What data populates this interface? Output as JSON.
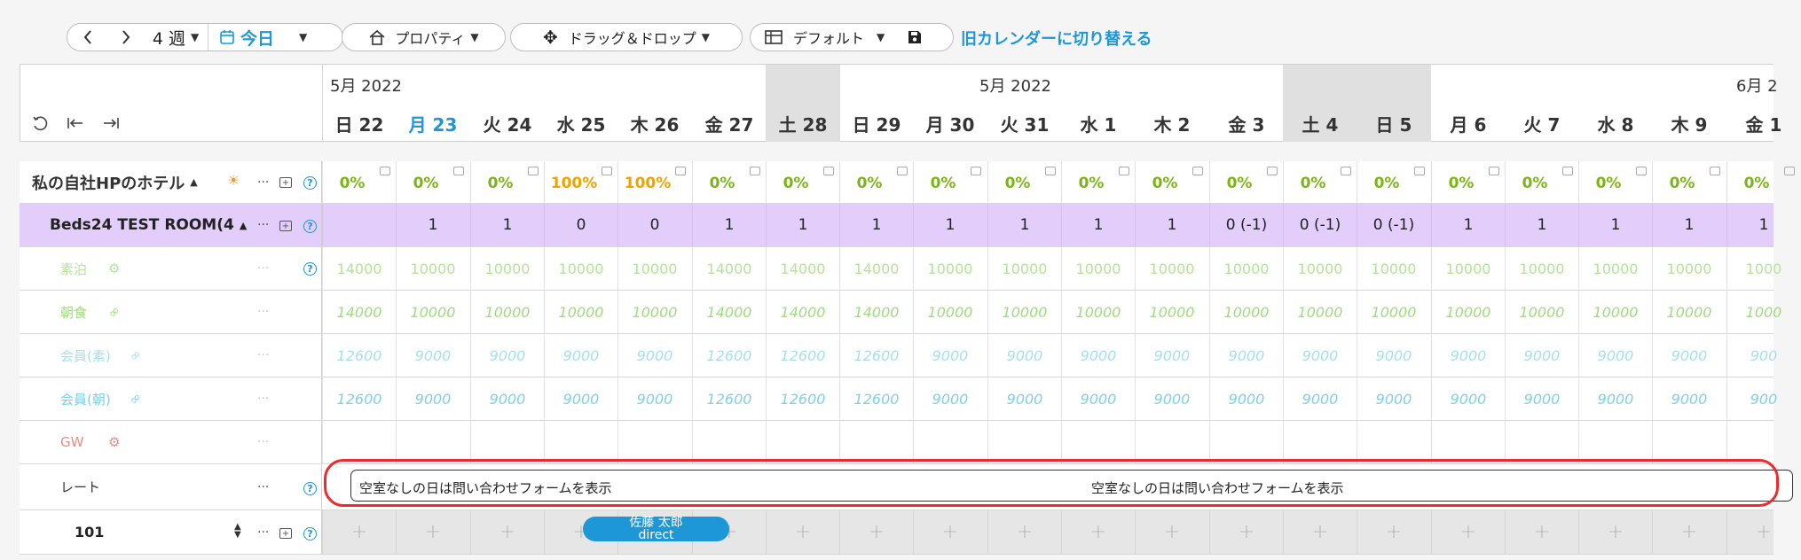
{
  "toolbar": {
    "prev_icon": "chevron-left-icon",
    "next_icon": "chevron-right-icon",
    "weeks_label": "4 週",
    "today_label": "今日",
    "property_label": "プロパティ",
    "dragdrop_label": "ドラッグ＆ドロップ",
    "layout_label": "デフォルト",
    "switch_link": "旧カレンダーに切り替える"
  },
  "header": {
    "months": [
      {
        "label": "5月 2022",
        "col": 0
      },
      {
        "label": "5月 2022",
        "col": 9
      },
      {
        "label": "6月 2",
        "col": 19
      }
    ],
    "days": [
      {
        "label": "日 22",
        "weekend": false,
        "today": false
      },
      {
        "label": "月 23",
        "weekend": false,
        "today": true
      },
      {
        "label": "火 24",
        "weekend": false,
        "today": false
      },
      {
        "label": "水 25",
        "weekend": false,
        "today": false
      },
      {
        "label": "木 26",
        "weekend": false,
        "today": false
      },
      {
        "label": "金 27",
        "weekend": false,
        "today": false
      },
      {
        "label": "土 28",
        "weekend": true,
        "today": false
      },
      {
        "label": "日 29",
        "weekend": false,
        "today": false
      },
      {
        "label": "月 30",
        "weekend": false,
        "today": false
      },
      {
        "label": "火 31",
        "weekend": false,
        "today": false
      },
      {
        "label": "水 1",
        "weekend": false,
        "today": false
      },
      {
        "label": "木 2",
        "weekend": false,
        "today": false
      },
      {
        "label": "金 3",
        "weekend": false,
        "today": false
      },
      {
        "label": "土 4",
        "weekend": true,
        "today": false
      },
      {
        "label": "日 5",
        "weekend": true,
        "today": false
      },
      {
        "label": "月 6",
        "weekend": false,
        "today": false
      },
      {
        "label": "火 7",
        "weekend": false,
        "today": false
      },
      {
        "label": "水 8",
        "weekend": false,
        "today": false
      },
      {
        "label": "木 9",
        "weekend": false,
        "today": false
      },
      {
        "label": "金 1",
        "weekend": false,
        "today": false
      }
    ]
  },
  "property": {
    "name": "私の自社HPのホテル",
    "occupancy": [
      "0%",
      "0%",
      "0%",
      "100%",
      "100%",
      "0%",
      "0%",
      "0%",
      "0%",
      "0%",
      "0%",
      "0%",
      "0%",
      "0%",
      "0%",
      "0%",
      "0%",
      "0%",
      "0%",
      "0%"
    ]
  },
  "room": {
    "name": "Beds24 TEST ROOM(4",
    "availability": [
      "",
      "1",
      "1",
      "0",
      "0",
      "1",
      "1",
      "1",
      "1",
      "1",
      "1",
      "1",
      "0 (-1)",
      "0 (-1)",
      "0 (-1)",
      "1",
      "1",
      "1",
      "1",
      "1"
    ]
  },
  "price_rows": [
    {
      "label": "素泊",
      "icon": "gears-icon",
      "color": "#b6e39a",
      "values": [
        "14000",
        "10000",
        "10000",
        "10000",
        "10000",
        "14000",
        "14000",
        "14000",
        "10000",
        "10000",
        "10000",
        "10000",
        "10000",
        "10000",
        "10000",
        "10000",
        "10000",
        "10000",
        "10000",
        "1000"
      ]
    },
    {
      "label": "朝食",
      "icon": "link-icon",
      "color": "#9fdc7e",
      "values": [
        "14000",
        "10000",
        "10000",
        "10000",
        "10000",
        "14000",
        "14000",
        "14000",
        "10000",
        "10000",
        "10000",
        "10000",
        "10000",
        "10000",
        "10000",
        "10000",
        "10000",
        "10000",
        "10000",
        "1000"
      ]
    },
    {
      "label": "会員(素)",
      "icon": "link-icon",
      "color": "#a6e0ee",
      "values": [
        "12600",
        "9000",
        "9000",
        "9000",
        "9000",
        "12600",
        "12600",
        "12600",
        "9000",
        "9000",
        "9000",
        "9000",
        "9000",
        "9000",
        "9000",
        "9000",
        "9000",
        "9000",
        "9000",
        "900"
      ]
    },
    {
      "label": "会員(朝)",
      "icon": "link-icon",
      "color": "#7fd0e6",
      "values": [
        "12600",
        "9000",
        "9000",
        "9000",
        "9000",
        "12600",
        "12600",
        "12600",
        "9000",
        "9000",
        "9000",
        "9000",
        "9000",
        "9000",
        "9000",
        "9000",
        "9000",
        "9000",
        "9000",
        "900"
      ]
    },
    {
      "label": "GW",
      "icon": "gears-icon",
      "color": "#f08a80",
      "values": []
    }
  ],
  "rate_row": {
    "label": "レート",
    "notes": [
      "空室なしの日は問い合わせフォームを表示",
      "空室なしの日は問い合わせフォームを表示"
    ]
  },
  "unit_row": {
    "name": "101",
    "plus": "+",
    "booking_name": "佐藤 太郎",
    "booking_channel": "direct"
  },
  "colors": {
    "accent": "#1e97d8",
    "room_row_bg": "#e2cdfb",
    "weekend_bg": "#e0e0e0",
    "highlight": "#ee2b2b"
  }
}
